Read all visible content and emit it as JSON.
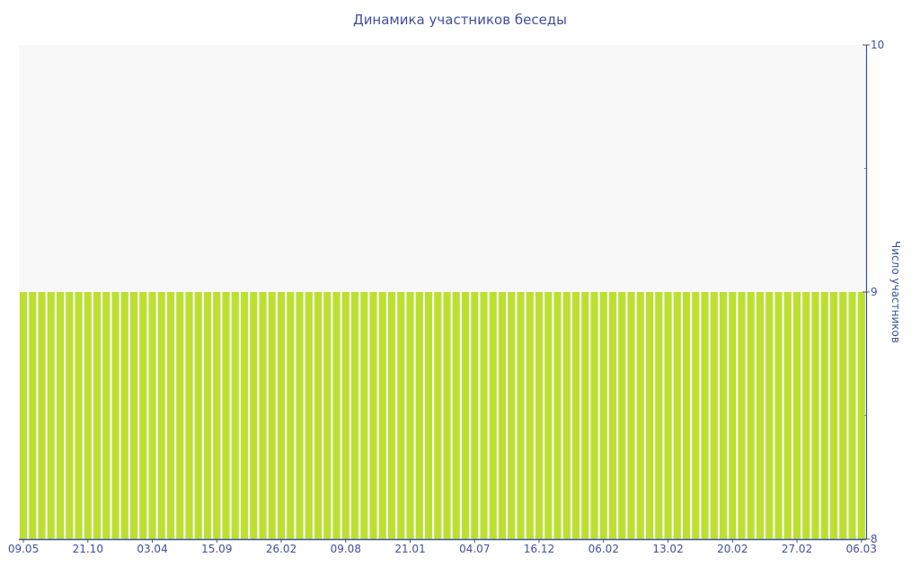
{
  "chart_data": {
    "type": "bar",
    "title": "Динамика участников беседы",
    "ylabel": "Число участников",
    "ylim": [
      8,
      10
    ],
    "yticks": [
      "8",
      "9",
      "10"
    ],
    "y_axis_position": "right",
    "bar_count": 92,
    "value": 9,
    "xtick_labels": [
      "09.05",
      "21.10",
      "03.04",
      "15.09",
      "26.02",
      "09.08",
      "21.01",
      "04.07",
      "16.12",
      "06.02",
      "13.02",
      "20.02",
      "27.02",
      "06.03"
    ],
    "xtick_every_n_bars": 7,
    "colors": {
      "bar": "#bce02f",
      "plot_bg": "#f8f8f8",
      "axis": "#3e4fa0"
    },
    "grid": false,
    "legend": "none"
  }
}
